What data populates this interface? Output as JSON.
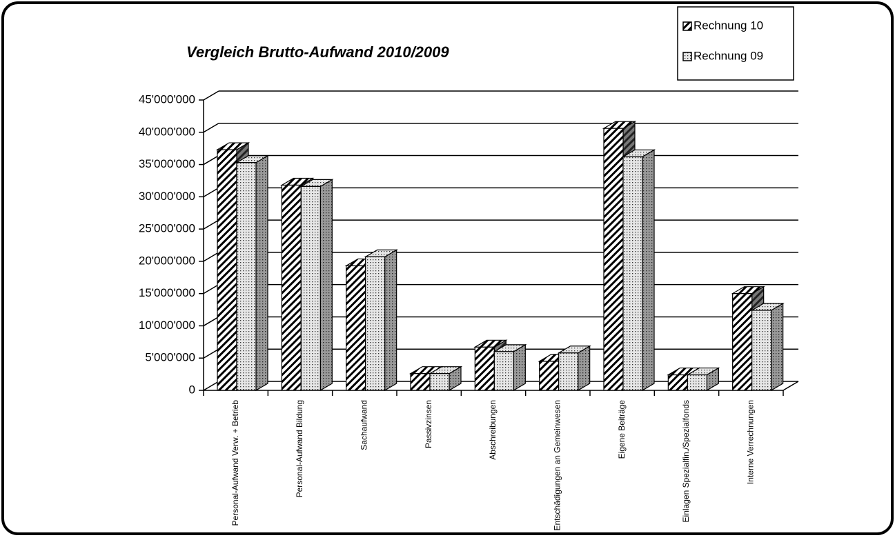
{
  "chart_data": {
    "type": "bar3d",
    "title": "Vergleich Brutto-Aufwand 2010/2009",
    "categories": [
      "Personal-Aufwand Verw. + Betrieb",
      "Personal-Aufwand Bildung",
      "Sachaufwand",
      "Passivzinsen",
      "Abschreibungen",
      "Entschädigungen an Gemeinwesen",
      "Eigene Beiträge",
      "Einlagen Spezialfin./Spezialfonds",
      "Interne Verrechnungen"
    ],
    "series": [
      {
        "name": "Rechnung 10",
        "color": "#000000",
        "pattern": "hatch",
        "values": [
          37300000,
          31800000,
          19300000,
          2600000,
          6700000,
          4500000,
          40600000,
          2400000,
          15000000
        ]
      },
      {
        "name": "Rechnung 09",
        "color": "#000000",
        "pattern": "dots",
        "values": [
          35300000,
          31600000,
          20700000,
          2600000,
          6000000,
          5800000,
          36200000,
          2400000,
          12400000
        ]
      }
    ],
    "ylim": [
      0,
      45000000
    ],
    "yticks": [
      0,
      {
        "value": 5000000,
        "label": "5'000'000"
      },
      {
        "value": 10000000,
        "label": "10'000'000"
      },
      {
        "value": 15000000,
        "label": "15'000'000"
      },
      {
        "value": 20000000,
        "label": "20'000'000"
      },
      {
        "value": 25000000,
        "label": "25'000'000"
      },
      {
        "value": 30000000,
        "label": "30'000'000"
      },
      {
        "value": 35000000,
        "label": "35'000'000"
      },
      {
        "value": 40000000,
        "label": "40'000'000"
      },
      {
        "value": 45000000,
        "label": "45'000'000"
      }
    ],
    "grid": true,
    "legend": "top-right"
  }
}
